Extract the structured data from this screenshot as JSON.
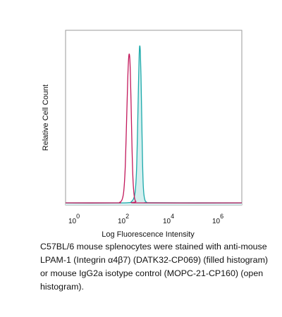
{
  "chart_data": {
    "type": "area",
    "xlabel": "Log Fluorescence Intensity",
    "ylabel": "Relative Cell Count",
    "x_scale": "log",
    "xlim": [
      1,
      10000000
    ],
    "ylim": [
      0,
      1.0
    ],
    "x_ticks": [
      {
        "base": "10",
        "exp": "0",
        "value": 1
      },
      {
        "base": "10",
        "exp": "2",
        "value": 100
      },
      {
        "base": "10",
        "exp": "4",
        "value": 10000
      },
      {
        "base": "10",
        "exp": "6",
        "value": 1000000
      }
    ],
    "grid": false,
    "series": [
      {
        "style": "filled",
        "color": "#1aa9aa",
        "fill": "#d4efef",
        "points": [
          [
            1,
            0.012
          ],
          [
            100,
            0.012
          ],
          [
            300,
            0.013
          ],
          [
            420,
            0.02
          ],
          [
            560,
            0.06
          ],
          [
            650,
            0.18
          ],
          [
            720,
            0.42
          ],
          [
            790,
            0.7
          ],
          [
            840,
            0.86
          ],
          [
            880,
            0.91
          ],
          [
            930,
            0.88
          ],
          [
            990,
            0.74
          ],
          [
            1060,
            0.5
          ],
          [
            1140,
            0.25
          ],
          [
            1230,
            0.1
          ],
          [
            1380,
            0.035
          ],
          [
            1700,
            0.015
          ],
          [
            3000,
            0.013
          ],
          [
            10000000,
            0.012
          ]
        ]
      },
      {
        "style": "open",
        "color": "#c2185b",
        "points": [
          [
            1,
            0.012
          ],
          [
            100,
            0.012
          ],
          [
            140,
            0.015
          ],
          [
            175,
            0.03
          ],
          [
            205,
            0.08
          ],
          [
            235,
            0.22
          ],
          [
            265,
            0.48
          ],
          [
            295,
            0.72
          ],
          [
            320,
            0.84
          ],
          [
            345,
            0.86
          ],
          [
            370,
            0.78
          ],
          [
            400,
            0.58
          ],
          [
            435,
            0.33
          ],
          [
            475,
            0.15
          ],
          [
            530,
            0.055
          ],
          [
            620,
            0.02
          ],
          [
            900,
            0.012
          ],
          [
            10000000,
            0.012
          ]
        ]
      }
    ]
  },
  "caption": "C57BL/6 mouse splenocytes were stained with anti-mouse LPAM-1 (Integrin α4β7) (DATK32-CP069) (filled histogram) or mouse IgG2a isotype control (MOPC-21-CP160) (open histogram)."
}
